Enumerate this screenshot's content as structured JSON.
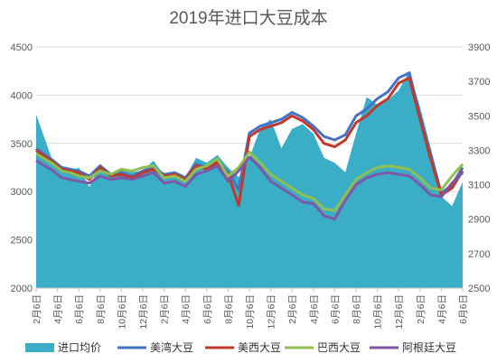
{
  "chart_data": {
    "type": "area",
    "title": "2019年进口大豆成本",
    "left_axis": {
      "ylim": [
        2000,
        4500
      ],
      "ticks": [
        "2000",
        "2500",
        "3000",
        "3500",
        "4000",
        "4500"
      ]
    },
    "right_axis": {
      "ylim": [
        2500,
        3900
      ],
      "ticks": [
        "2500",
        "2700",
        "2900",
        "3100",
        "3300",
        "3500",
        "3700",
        "3900"
      ]
    },
    "x_ticks": [
      "2月6日",
      "4月6日",
      "6月6日",
      "8月6日",
      "10月6日",
      "12月6日",
      "2月6日",
      "4月6日",
      "6月6日",
      "8月6日",
      "10月6日",
      "12月6日",
      "2月6日",
      "4月6日",
      "6月6日",
      "8月6日",
      "10月6日",
      "12月6日",
      "2月6日",
      "4月6日",
      "6月6日"
    ],
    "grid": true,
    "legend_position": "bottom",
    "series": [
      {
        "name": "进口均价",
        "kind": "area",
        "axis": "left",
        "color": "#3aadc7",
        "x": [
          0,
          0.8,
          1.2,
          1.6,
          2,
          2.5,
          3,
          3.5,
          4,
          4.5,
          5,
          5.5,
          6,
          6.5,
          7,
          7.5,
          8,
          8.5,
          9,
          9.5,
          10,
          10.5,
          11,
          11.5,
          12,
          12.5,
          13,
          13.5,
          14,
          14.5,
          15,
          15.5,
          16,
          16.5,
          17,
          17.5,
          18,
          18.5,
          19,
          19.5,
          20
        ],
        "values": [
          3800,
          3300,
          3250,
          3200,
          3250,
          3050,
          3280,
          3180,
          3220,
          3200,
          3220,
          3320,
          3170,
          3200,
          3150,
          3350,
          3300,
          3380,
          3250,
          3150,
          3350,
          3650,
          3750,
          3450,
          3650,
          3700,
          3600,
          3350,
          3300,
          3200,
          3600,
          3980,
          3900,
          3950,
          4050,
          4250,
          3880,
          3450,
          2950,
          2850,
          3100
        ]
      },
      {
        "name": "美湾大豆",
        "kind": "line",
        "axis": "right",
        "color": "#4472c4",
        "x": [
          0,
          0.8,
          1.2,
          1.6,
          2,
          2.5,
          3,
          3.5,
          4,
          4.5,
          5,
          5.5,
          6,
          6.5,
          7,
          7.5,
          8,
          8.5,
          9,
          9.5,
          10,
          10.5,
          11,
          11.5,
          12,
          12.5,
          13,
          13.5,
          14,
          14.5,
          15,
          15.5,
          16,
          16.5,
          17,
          17.5,
          18,
          18.5,
          19,
          19.5,
          20
        ],
        "values": [
          3310,
          3240,
          3200,
          3190,
          3180,
          3150,
          3210,
          3160,
          3170,
          3150,
          3180,
          3200,
          3160,
          3170,
          3140,
          3220,
          3200,
          3240,
          3170,
          3070,
          3400,
          3440,
          3460,
          3480,
          3520,
          3490,
          3440,
          3380,
          3360,
          3390,
          3500,
          3540,
          3600,
          3640,
          3720,
          3750,
          3500,
          3280,
          3050,
          3100,
          3200
        ]
      },
      {
        "name": "美西大豆",
        "kind": "line",
        "axis": "right",
        "color": "#c0392b",
        "x": [
          0,
          0.8,
          1.2,
          1.6,
          2,
          2.5,
          3,
          3.5,
          4,
          4.5,
          5,
          5.5,
          6,
          6.5,
          7,
          7.5,
          8,
          8.5,
          9,
          9.5,
          10,
          10.5,
          11,
          11.5,
          12,
          12.5,
          13,
          13.5,
          14,
          14.5,
          15,
          15.5,
          16,
          16.5,
          17,
          17.5,
          18,
          18.5,
          19,
          19.5,
          20
        ],
        "values": [
          3300,
          3230,
          3190,
          3180,
          3170,
          3130,
          3200,
          3150,
          3160,
          3140,
          3170,
          3190,
          3150,
          3160,
          3130,
          3210,
          3190,
          3230,
          3160,
          2980,
          3380,
          3420,
          3440,
          3460,
          3500,
          3470,
          3420,
          3340,
          3320,
          3360,
          3460,
          3500,
          3560,
          3600,
          3690,
          3720,
          3480,
          3250,
          3040,
          3080,
          3180
        ]
      },
      {
        "name": "巴西大豆",
        "kind": "line",
        "axis": "right",
        "color": "#92c050",
        "x": [
          0,
          0.8,
          1.2,
          1.6,
          2,
          2.5,
          3,
          3.5,
          4,
          4.5,
          5,
          5.5,
          6,
          6.5,
          7,
          7.5,
          8,
          8.5,
          9,
          9.5,
          10,
          10.5,
          11,
          11.5,
          12,
          12.5,
          13,
          13.5,
          14,
          14.5,
          15,
          15.5,
          16,
          16.5,
          17,
          17.5,
          18,
          18.5,
          19,
          19.5,
          20
        ],
        "values": [
          3280,
          3220,
          3180,
          3170,
          3150,
          3140,
          3180,
          3160,
          3190,
          3180,
          3200,
          3210,
          3140,
          3150,
          3120,
          3190,
          3210,
          3250,
          3150,
          3200,
          3290,
          3230,
          3160,
          3120,
          3080,
          3040,
          3020,
          2960,
          2950,
          3040,
          3130,
          3170,
          3200,
          3210,
          3200,
          3190,
          3140,
          3080,
          3070,
          3150,
          3220
        ]
      },
      {
        "name": "阿根廷大豆",
        "kind": "line",
        "axis": "right",
        "color": "#7e57a6",
        "x": [
          0,
          0.8,
          1.2,
          1.6,
          2,
          2.5,
          3,
          3.5,
          4,
          4.5,
          5,
          5.5,
          6,
          6.5,
          7,
          7.5,
          8,
          8.5,
          9,
          9.5,
          10,
          10.5,
          11,
          11.5,
          12,
          12.5,
          13,
          13.5,
          14,
          14.5,
          15,
          15.5,
          16,
          16.5,
          17,
          17.5,
          18,
          18.5,
          19,
          19.5,
          20
        ],
        "values": [
          3240,
          3180,
          3140,
          3130,
          3120,
          3110,
          3150,
          3130,
          3140,
          3130,
          3150,
          3170,
          3110,
          3120,
          3090,
          3160,
          3180,
          3210,
          3120,
          3180,
          3260,
          3200,
          3120,
          3080,
          3040,
          3000,
          2990,
          2920,
          2900,
          3010,
          3100,
          3140,
          3160,
          3170,
          3160,
          3150,
          3100,
          3040,
          3030,
          3110,
          3170
        ]
      }
    ]
  }
}
